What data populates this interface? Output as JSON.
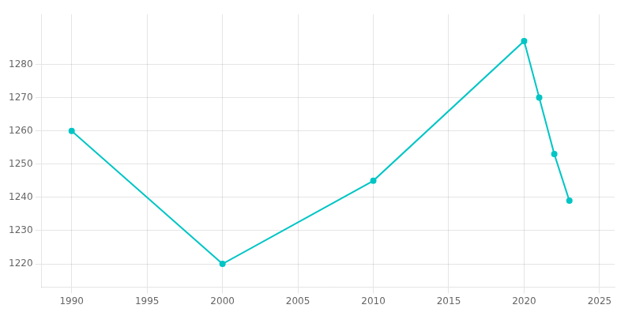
{
  "chart_data": {
    "type": "line",
    "x": [
      1990,
      2000,
      2010,
      2020,
      2021,
      2022,
      2023
    ],
    "values": [
      1260,
      1220,
      1245,
      1287,
      1270,
      1253,
      1239
    ],
    "color": "#00C5C5",
    "marker": "circle",
    "line_style": "solid",
    "xlim": [
      1988,
      2026
    ],
    "ylim": [
      1213,
      1295
    ],
    "xticks": [
      1990,
      1995,
      2000,
      2005,
      2010,
      2015,
      2020,
      2025
    ],
    "yticks": [
      1220,
      1230,
      1240,
      1250,
      1260,
      1270,
      1280
    ],
    "grid": true
  }
}
